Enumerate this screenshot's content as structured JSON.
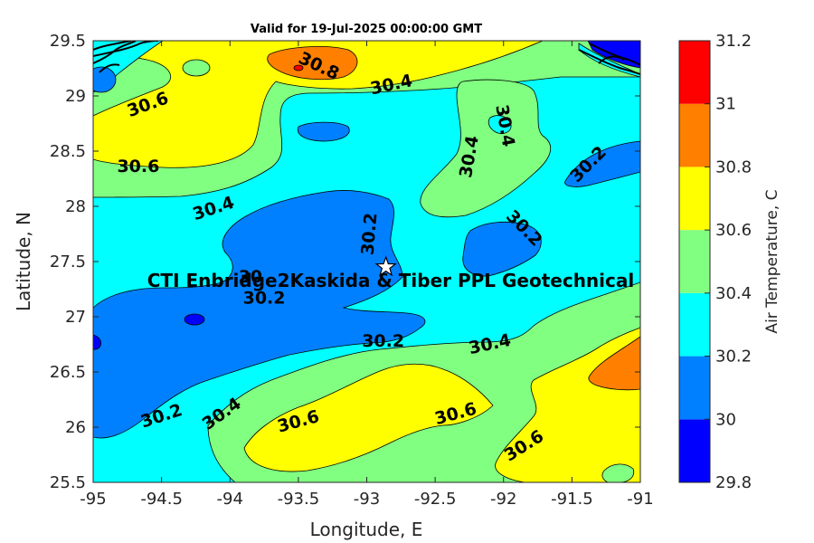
{
  "chart_data": {
    "type": "heatmap",
    "title": "Valid for 19-Jul-2025 00:00:00 GMT",
    "xlabel": "Longitude, E",
    "ylabel": "Latitude, N",
    "xlim": [
      -95,
      -91
    ],
    "ylim": [
      25.5,
      29.5
    ],
    "xticks": [
      "-95",
      "-94.5",
      "-94",
      "-93.5",
      "-93",
      "-92.5",
      "-92",
      "-91.5",
      "-91"
    ],
    "yticks": [
      "25.5",
      "26",
      "26.5",
      "27",
      "27.5",
      "28",
      "28.5",
      "29",
      "29.5"
    ],
    "colorbar": {
      "label": "Air Temperature, C",
      "ticks": [
        "29.8",
        "30",
        "30.2",
        "30.4",
        "30.6",
        "30.8",
        "31",
        "31.2"
      ],
      "levels": [
        29.8,
        30.0,
        30.2,
        30.4,
        30.6,
        30.8,
        31.0,
        31.2
      ],
      "colors": [
        "#0000ff",
        "#0080ff",
        "#00ffff",
        "#80ff80",
        "#ffff00",
        "#ff8000",
        "#ff0000",
        "#800000"
      ]
    },
    "contour_labels": [
      {
        "text": "30.8",
        "lon": -93.35,
        "lat": 29.27,
        "angle": 25
      },
      {
        "text": "30.6",
        "lon": -94.6,
        "lat": 28.92,
        "angle": -20
      },
      {
        "text": "30.4",
        "lon": -92.82,
        "lat": 29.1,
        "angle": -12
      },
      {
        "text": "30.4",
        "lon": -91.99,
        "lat": 28.73,
        "angle": 80
      },
      {
        "text": "30.4",
        "lon": -92.25,
        "lat": 28.45,
        "angle": -80
      },
      {
        "text": "30.6",
        "lon": -94.67,
        "lat": 28.36,
        "angle": 0
      },
      {
        "text": "30.2",
        "lon": -91.38,
        "lat": 28.38,
        "angle": -45
      },
      {
        "text": "30.4",
        "lon": -94.12,
        "lat": 27.98,
        "angle": -18
      },
      {
        "text": "30.2",
        "lon": -92.98,
        "lat": 27.75,
        "angle": -85
      },
      {
        "text": "30.2",
        "lon": -91.85,
        "lat": 27.8,
        "angle": 45
      },
      {
        "text": "30",
        "lon": -93.85,
        "lat": 27.36,
        "angle": 0
      },
      {
        "text": "30.2",
        "lon": -93.75,
        "lat": 27.17,
        "angle": 0
      },
      {
        "text": "30.2",
        "lon": -92.88,
        "lat": 26.78,
        "angle": 0
      },
      {
        "text": "30.4",
        "lon": -92.1,
        "lat": 26.75,
        "angle": -12
      },
      {
        "text": "30.2",
        "lon": -94.5,
        "lat": 26.1,
        "angle": -18
      },
      {
        "text": "30.4",
        "lon": -94.06,
        "lat": 26.12,
        "angle": -35
      },
      {
        "text": "30.6",
        "lon": -93.5,
        "lat": 26.05,
        "angle": -15
      },
      {
        "text": "30.6",
        "lon": -92.35,
        "lat": 26.12,
        "angle": -15
      },
      {
        "text": "30.6",
        "lon": -91.85,
        "lat": 25.83,
        "angle": -32
      }
    ],
    "site": {
      "name": "CTI Enbridge2Kaskida & Tiber PPL Geotechnical",
      "lon": -92.86,
      "lat": 27.45
    }
  }
}
